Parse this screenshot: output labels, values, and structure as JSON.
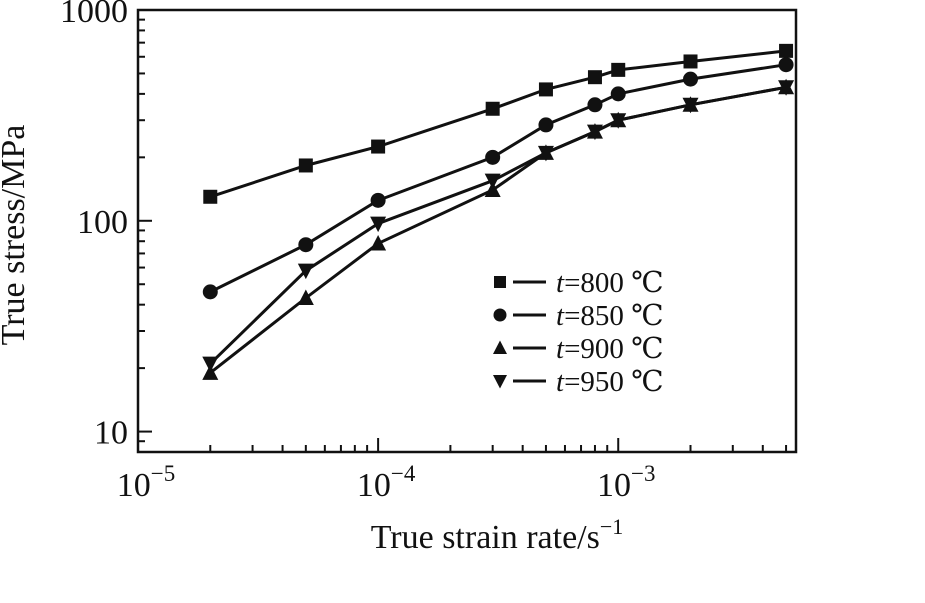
{
  "chart_data": {
    "type": "line",
    "xscale": "log",
    "yscale": "log",
    "xlabel": "True strain rate/s",
    "xlabel_sup": "−1",
    "ylabel": "True stress/MPa",
    "xlim": [
      1e-05,
      0.0055
    ],
    "ylim": [
      8,
      1000
    ],
    "xticks": [
      {
        "value": 1e-05,
        "base": "10",
        "exp": "−5"
      },
      {
        "value": 0.0001,
        "base": "10",
        "exp": "−4"
      },
      {
        "value": 0.001,
        "base": "10",
        "exp": "−3"
      }
    ],
    "yticks": [
      {
        "value": 10,
        "label": "10"
      },
      {
        "value": 100,
        "label": "100"
      },
      {
        "value": 1000,
        "label": "1000"
      }
    ],
    "legend_position": "bottom-right",
    "series": [
      {
        "name": "800 ℃",
        "marker": "square",
        "x": [
          2e-05,
          5e-05,
          0.0001,
          0.0003,
          0.0005,
          0.0008,
          0.001,
          0.002,
          0.005
        ],
        "y": [
          130,
          183,
          225,
          340,
          420,
          480,
          520,
          570,
          640
        ]
      },
      {
        "name": "850 ℃",
        "marker": "circle",
        "x": [
          2e-05,
          5e-05,
          0.0001,
          0.0003,
          0.0005,
          0.0008,
          0.001,
          0.002,
          0.005
        ],
        "y": [
          46,
          77,
          125,
          200,
          285,
          355,
          400,
          470,
          550
        ]
      },
      {
        "name": "900 ℃",
        "marker": "triangle-up",
        "x": [
          2e-05,
          5e-05,
          0.0001,
          0.0003,
          0.0005,
          0.0008,
          0.001,
          0.002,
          0.005
        ],
        "y": [
          19,
          43,
          78,
          140,
          210,
          265,
          300,
          355,
          430
        ]
      },
      {
        "name": "950 ℃",
        "marker": "triangle-down",
        "x": [
          2e-05,
          5e-05,
          0.0001,
          0.0003,
          0.0005,
          0.0008,
          0.001,
          0.002,
          0.005
        ],
        "y": [
          21,
          58,
          97,
          155,
          210,
          265,
          300,
          355,
          430
        ]
      }
    ],
    "legend_prefix": "t",
    "legend_eq": "="
  }
}
